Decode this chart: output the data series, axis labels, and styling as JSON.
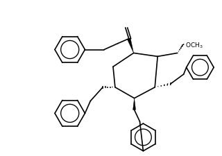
{
  "bg_color": "#ffffff",
  "line_color": "#000000",
  "line_width": 1.2,
  "fig_width": 3.2,
  "fig_height": 2.26,
  "dpi": 100
}
